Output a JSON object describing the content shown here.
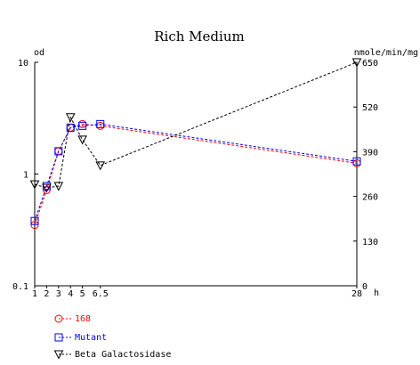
{
  "chart_data": {
    "type": "line",
    "title": "Rich Medium",
    "left_axis": {
      "label": "od",
      "scale": "log",
      "range": [
        0.1,
        10
      ],
      "ticks": [
        0.1,
        1,
        10
      ],
      "tick_labels": [
        "0.1",
        "1",
        "10"
      ]
    },
    "right_axis": {
      "label": "nmole/min/mg",
      "scale": "linear",
      "range": [
        0,
        650
      ],
      "ticks": [
        0,
        130,
        260,
        390,
        520,
        650
      ],
      "tick_labels": [
        "0",
        "130",
        "260",
        "390",
        "520",
        "650"
      ]
    },
    "x_axis": {
      "unit_label": "h",
      "ticks": [
        1,
        2,
        3,
        4,
        5,
        6.5,
        28
      ],
      "tick_labels": [
        "1",
        "2",
        "3",
        "4",
        "5",
        "6.5",
        "28"
      ]
    },
    "grid": false,
    "legend_position": "bottom-left",
    "series": [
      {
        "name": "168",
        "axis": "left",
        "color": "#ff0000",
        "marker": "circle",
        "x": [
          1,
          2,
          3,
          4,
          5,
          6.5,
          28
        ],
        "y": [
          0.35,
          0.72,
          1.6,
          2.6,
          2.8,
          2.7,
          1.25
        ]
      },
      {
        "name": "Mutant",
        "axis": "left",
        "color": "#0000ff",
        "marker": "square",
        "x": [
          1,
          2,
          3,
          4,
          5,
          6.5,
          28
        ],
        "y": [
          0.38,
          0.78,
          1.6,
          2.6,
          2.7,
          2.8,
          1.3
        ]
      },
      {
        "name": "Beta Galactosidase",
        "axis": "right",
        "color": "#000000",
        "marker": "triangle-down",
        "x": [
          1,
          2,
          3,
          4,
          5,
          6.5,
          28
        ],
        "y": [
          295,
          285,
          290,
          490,
          425,
          350,
          650
        ]
      }
    ]
  }
}
